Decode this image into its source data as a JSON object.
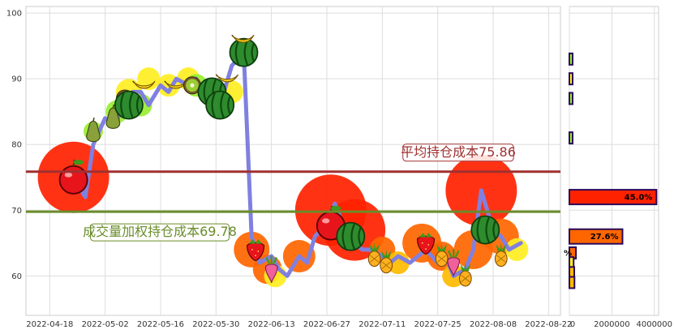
{
  "chart_data": {
    "type": "line",
    "y_ticks": [
      60,
      70,
      80,
      90,
      100
    ],
    "ylim": [
      54,
      101
    ],
    "x_ticks": [
      "2022-04-18",
      "2022-05-02",
      "2022-05-16",
      "2022-05-30",
      "2022-06-13",
      "2022-06-27",
      "2022-07-11",
      "2022-07-25",
      "2022-08-08",
      "2022-08-22"
    ],
    "xlim": [
      "2022-04-12",
      "2022-08-25"
    ],
    "price_line": {
      "color": "#8080e0",
      "points": [
        [
          "2022-04-25",
          74
        ],
        [
          "2022-04-27",
          72
        ],
        [
          "2022-04-29",
          80
        ],
        [
          "2022-05-02",
          84
        ],
        [
          "2022-05-05",
          83
        ],
        [
          "2022-05-06",
          87
        ],
        [
          "2022-05-09",
          88
        ],
        [
          "2022-05-11",
          88
        ],
        [
          "2022-05-13",
          86
        ],
        [
          "2022-05-16",
          89
        ],
        [
          "2022-05-18",
          88
        ],
        [
          "2022-05-20",
          90
        ],
        [
          "2022-05-23",
          89
        ],
        [
          "2022-05-25",
          90
        ],
        [
          "2022-05-27",
          88
        ],
        [
          "2022-05-30",
          86
        ],
        [
          "2022-06-01",
          88
        ],
        [
          "2022-06-03",
          92
        ],
        [
          "2022-06-06",
          94
        ],
        [
          "2022-06-08",
          66
        ],
        [
          "2022-06-10",
          62
        ],
        [
          "2022-06-13",
          63
        ],
        [
          "2022-06-15",
          61
        ],
        [
          "2022-06-17",
          60
        ],
        [
          "2022-06-20",
          63
        ],
        [
          "2022-06-22",
          62
        ],
        [
          "2022-06-24",
          66
        ],
        [
          "2022-06-27",
          68
        ],
        [
          "2022-06-29",
          71
        ],
        [
          "2022-07-01",
          68
        ],
        [
          "2022-07-04",
          65
        ],
        [
          "2022-07-06",
          64
        ],
        [
          "2022-07-08",
          64
        ],
        [
          "2022-07-11",
          63
        ],
        [
          "2022-07-13",
          62
        ],
        [
          "2022-07-15",
          63
        ],
        [
          "2022-07-18",
          62
        ],
        [
          "2022-07-20",
          63
        ],
        [
          "2022-07-22",
          64
        ],
        [
          "2022-07-25",
          62
        ],
        [
          "2022-07-27",
          63
        ],
        [
          "2022-07-29",
          60
        ],
        [
          "2022-08-01",
          61
        ],
        [
          "2022-08-03",
          64
        ],
        [
          "2022-08-05",
          73
        ],
        [
          "2022-08-08",
          67
        ],
        [
          "2022-08-10",
          66
        ],
        [
          "2022-08-12",
          64
        ],
        [
          "2022-08-15",
          65
        ]
      ]
    },
    "cost_lines": [
      {
        "label": "平均持仓成本75.86",
        "value": 75.86,
        "color": "#a03030"
      },
      {
        "label": "成交量加权持仓成本69.78",
        "value": 69.78,
        "color": "#6a8c2a"
      }
    ],
    "volume_distribution": {
      "x_ticks": [
        "0",
        "2000000",
        "4000000"
      ],
      "xlim": [
        0,
        4200000
      ],
      "bars": [
        {
          "price": 93.0,
          "volume": 120000,
          "color": "#99ee33",
          "label": ""
        },
        {
          "price": 90.0,
          "volume": 140000,
          "color": "#ffee22",
          "label": ""
        },
        {
          "price": 87.0,
          "volume": 90000,
          "color": "#99ee33",
          "label": ""
        },
        {
          "price": 81.0,
          "volume": 80000,
          "color": "#99ee33",
          "label": ""
        },
        {
          "price": 72.0,
          "volume": 4100000,
          "color": "#ff2200",
          "label": "45.0%"
        },
        {
          "price": 66.0,
          "volume": 2500000,
          "color": "#ff6600",
          "label": "27.6%"
        },
        {
          "price": 63.5,
          "volume": 310000,
          "color": "#ff6600",
          "label": "%"
        },
        {
          "price": 62.0,
          "volume": 200000,
          "color": "#ffee22",
          "label": ""
        },
        {
          "price": 60.5,
          "volume": 230000,
          "color": "#ffbb00",
          "label": ""
        },
        {
          "price": 59.0,
          "volume": 240000,
          "color": "#ffbb00",
          "label": ""
        }
      ]
    },
    "bubbles": [
      {
        "date": "2022-04-24",
        "price": 75,
        "size": 44,
        "color": "#ff2200"
      },
      {
        "date": "2022-04-29",
        "price": 82,
        "size": 12,
        "color": "#99ee33"
      },
      {
        "date": "2022-05-05",
        "price": 85,
        "size": 14,
        "color": "#99ee33"
      },
      {
        "date": "2022-05-08",
        "price": 88,
        "size": 16,
        "color": "#ffee22"
      },
      {
        "date": "2022-05-11",
        "price": 86,
        "size": 14,
        "color": "#99ee33"
      },
      {
        "date": "2022-05-13",
        "price": 90,
        "size": 14,
        "color": "#ffee22"
      },
      {
        "date": "2022-05-18",
        "price": 89,
        "size": 14,
        "color": "#ffee22"
      },
      {
        "date": "2022-05-23",
        "price": 90,
        "size": 14,
        "color": "#ffee22"
      },
      {
        "date": "2022-05-25",
        "price": 89,
        "size": 14,
        "color": "#99ee33"
      },
      {
        "date": "2022-05-30",
        "price": 87,
        "size": 12,
        "color": "#99ee33"
      },
      {
        "date": "2022-06-03",
        "price": 88,
        "size": 14,
        "color": "#ffee22"
      },
      {
        "date": "2022-06-06",
        "price": 94,
        "size": 14,
        "color": "#ffee22"
      },
      {
        "date": "2022-06-08",
        "price": 64,
        "size": 22,
        "color": "#ff6600"
      },
      {
        "date": "2022-06-12",
        "price": 61,
        "size": 18,
        "color": "#ff6600"
      },
      {
        "date": "2022-06-14",
        "price": 60,
        "size": 14,
        "color": "#ffee22"
      },
      {
        "date": "2022-06-20",
        "price": 63,
        "size": 20,
        "color": "#ff6600"
      },
      {
        "date": "2022-06-28",
        "price": 70,
        "size": 44,
        "color": "#ff2200"
      },
      {
        "date": "2022-07-04",
        "price": 67,
        "size": 38,
        "color": "#ff2200"
      },
      {
        "date": "2022-07-11",
        "price": 64,
        "size": 16,
        "color": "#ff6600"
      },
      {
        "date": "2022-07-15",
        "price": 62,
        "size": 14,
        "color": "#ffbb00"
      },
      {
        "date": "2022-07-21",
        "price": 65,
        "size": 24,
        "color": "#ff6600"
      },
      {
        "date": "2022-07-26",
        "price": 63,
        "size": 18,
        "color": "#ff6600"
      },
      {
        "date": "2022-07-29",
        "price": 60,
        "size": 14,
        "color": "#ffbb00"
      },
      {
        "date": "2022-08-03",
        "price": 64,
        "size": 24,
        "color": "#ff6600"
      },
      {
        "date": "2022-08-05",
        "price": 73,
        "size": 44,
        "color": "#ff2200"
      },
      {
        "date": "2022-08-10",
        "price": 66,
        "size": 22,
        "color": "#ff6600"
      },
      {
        "date": "2022-08-14",
        "price": 64,
        "size": 14,
        "color": "#ffee22"
      }
    ],
    "fruit_icons": [
      {
        "date": "2022-04-24",
        "price": 75,
        "icon": "apple-icon"
      },
      {
        "date": "2022-04-29",
        "price": 82,
        "icon": "pear-icon"
      },
      {
        "date": "2022-05-04",
        "price": 84,
        "icon": "pear-icon"
      },
      {
        "date": "2022-05-07",
        "price": 87,
        "icon": "kiwi-icon"
      },
      {
        "date": "2022-05-08",
        "price": 86,
        "icon": "watermelon-icon"
      },
      {
        "date": "2022-05-12",
        "price": 89,
        "icon": "banana-icon"
      },
      {
        "date": "2022-05-20",
        "price": 89,
        "icon": "banana-icon"
      },
      {
        "date": "2022-05-24",
        "price": 89,
        "icon": "kiwi-icon"
      },
      {
        "date": "2022-05-29",
        "price": 88,
        "icon": "watermelon-icon"
      },
      {
        "date": "2022-05-31",
        "price": 86,
        "icon": "watermelon-icon"
      },
      {
        "date": "2022-06-02",
        "price": 90,
        "icon": "banana-icon"
      },
      {
        "date": "2022-06-06",
        "price": 94,
        "icon": "watermelon-icon"
      },
      {
        "date": "2022-06-06",
        "price": 96,
        "icon": "banana-icon"
      },
      {
        "date": "2022-06-09",
        "price": 64,
        "icon": "strawberry-icon"
      },
      {
        "date": "2022-06-13",
        "price": 61,
        "icon": "radish-icon"
      },
      {
        "date": "2022-06-28",
        "price": 68,
        "icon": "apple-icon"
      },
      {
        "date": "2022-07-03",
        "price": 66,
        "icon": "watermelon-icon"
      },
      {
        "date": "2022-07-09",
        "price": 63,
        "icon": "pineapple-icon"
      },
      {
        "date": "2022-07-12",
        "price": 62,
        "icon": "pineapple-icon"
      },
      {
        "date": "2022-07-22",
        "price": 65,
        "icon": "strawberry-icon"
      },
      {
        "date": "2022-07-26",
        "price": 63,
        "icon": "pineapple-icon"
      },
      {
        "date": "2022-07-29",
        "price": 62,
        "icon": "radish-icon"
      },
      {
        "date": "2022-08-01",
        "price": 60,
        "icon": "pineapple-icon"
      },
      {
        "date": "2022-08-06",
        "price": 67,
        "icon": "watermelon-icon"
      },
      {
        "date": "2022-08-10",
        "price": 63,
        "icon": "pineapple-icon"
      }
    ]
  }
}
